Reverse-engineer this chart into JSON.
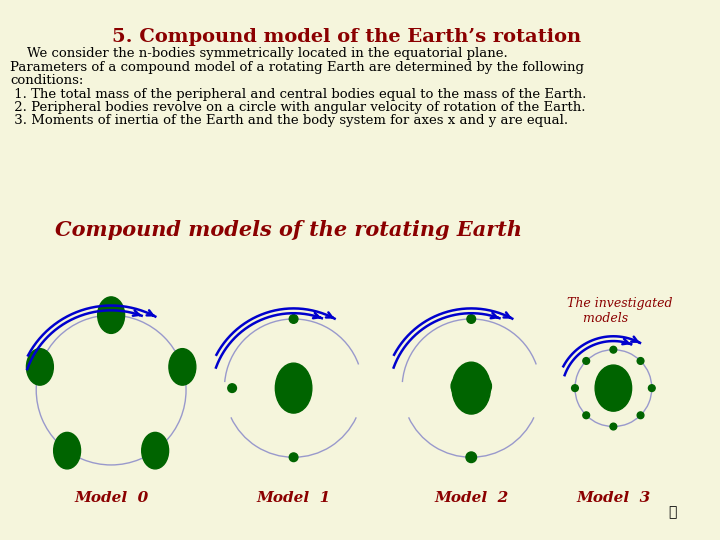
{
  "title": "5. Compound model of the Earth’s rotation",
  "title_color": "#8B0000",
  "title_fontsize": 14,
  "body_text": [
    "    We consider the n-bodies symmetrically located in the equatorial plane.",
    "Parameters of a compound model of a rotating Earth are determined by the following",
    "conditions:",
    " 1. The total mass of the peripheral and central bodies equal to the mass of the Earth.",
    " 2. Peripheral bodies revolve on a circle with angular velocity of rotation of the Earth.",
    " 3. Moments of inertia of the Earth and the body system for axes x and y are equal."
  ],
  "body_fontsize": 9.5,
  "subtitle": "Compound models of the rotating Earth",
  "subtitle_color": "#8B0000",
  "subtitle_fontsize": 15,
  "investigated_label": "The investigated\n    models",
  "investigated_color": "#8B0000",
  "investigated_fontsize": 9,
  "model_labels": [
    "Model  0",
    "Model  1",
    "Model  2",
    "Model  3"
  ],
  "model_label_color": "#8B0000",
  "model_label_fontsize": 11,
  "green_color": "#006400",
  "circle_color": "#9999CC",
  "circle_lw": 1.0,
  "arrow_color": "#0000CD",
  "bg_color": "#F5F5DC"
}
